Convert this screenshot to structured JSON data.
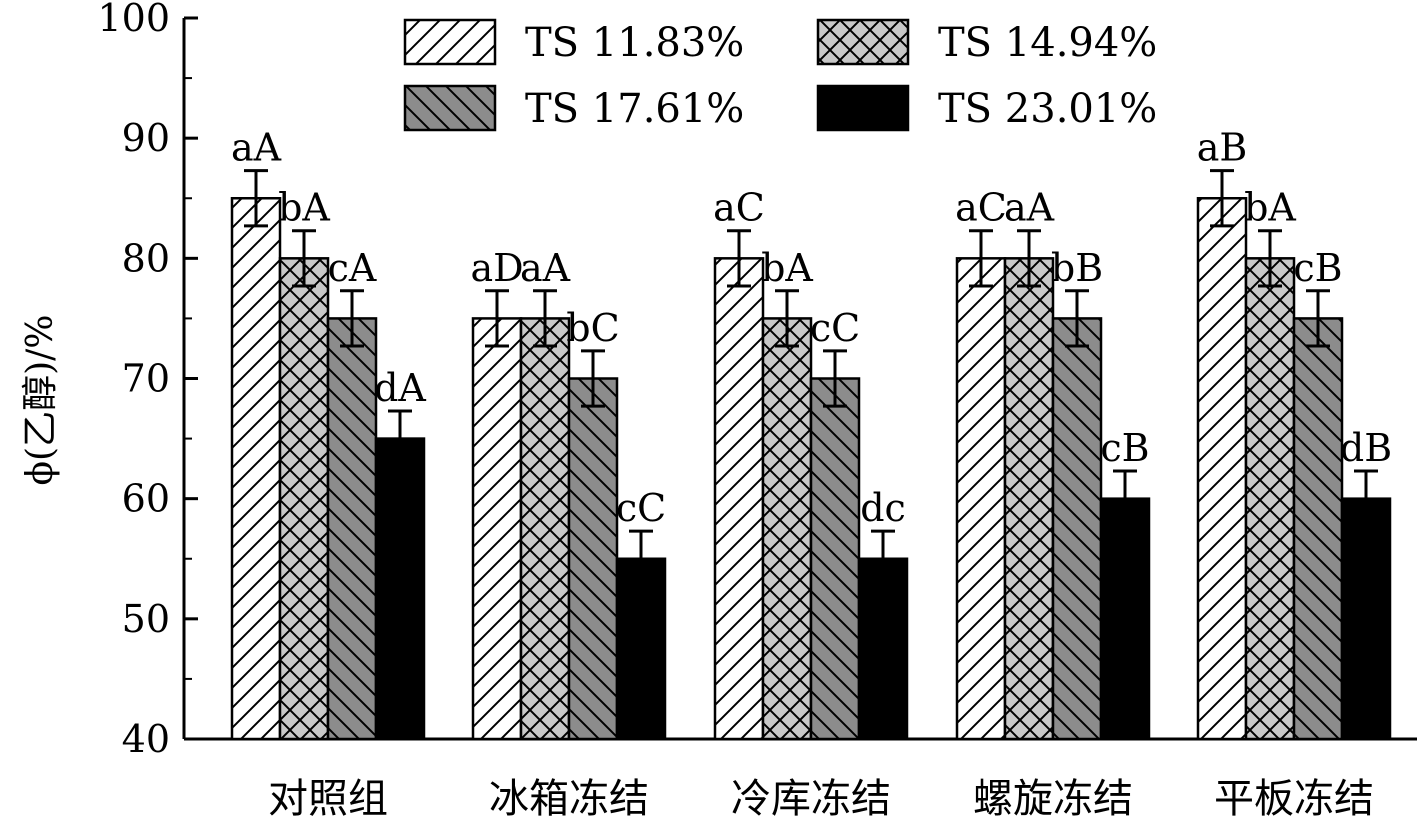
{
  "chart_data": {
    "type": "bar",
    "title": "",
    "xlabel": "",
    "ylabel": "ϕ(乙醇)/%",
    "ylim": [
      40,
      100
    ],
    "yticks": [
      "40",
      "50",
      "60",
      "70",
      "80",
      "90",
      "100"
    ],
    "categories": [
      "对照组",
      "冰箱冻结",
      "冷库冻结",
      "螺旋冻结",
      "平板冻结"
    ],
    "legend_position": "top",
    "series": [
      {
        "name": "TS 11.83%",
        "pattern": "diagonal-forward",
        "fill": "#ffffff",
        "values": [
          85,
          75,
          80,
          80,
          85
        ],
        "errors": [
          2.3,
          2.3,
          2.3,
          2.3,
          2.3
        ],
        "labels": [
          "aA",
          "aD",
          "aC",
          "aC",
          "aB"
        ]
      },
      {
        "name": "TS 14.94%",
        "pattern": "crosshatch",
        "fill": "#c8c8c8",
        "values": [
          80,
          75,
          75,
          80,
          80
        ],
        "errors": [
          2.3,
          2.3,
          2.3,
          2.3,
          2.3
        ],
        "labels": [
          "bA",
          "aA",
          "bA",
          "aA",
          "bA"
        ]
      },
      {
        "name": "TS 17.61%",
        "pattern": "diagonal-backward",
        "fill": "#8c8c8c",
        "values": [
          75,
          70,
          70,
          75,
          75
        ],
        "errors": [
          2.3,
          2.3,
          2.3,
          2.3,
          2.3
        ],
        "labels": [
          "cA",
          "bC",
          "cC",
          "bB",
          "cB"
        ]
      },
      {
        "name": "TS 23.01%",
        "pattern": "solid",
        "fill": "#000000",
        "values": [
          65,
          55,
          55,
          60,
          60
        ],
        "errors": [
          2.3,
          2.3,
          2.3,
          2.3,
          2.3
        ],
        "labels": [
          "dA",
          "cC",
          "dc",
          "cB",
          "dB"
        ]
      }
    ]
  }
}
